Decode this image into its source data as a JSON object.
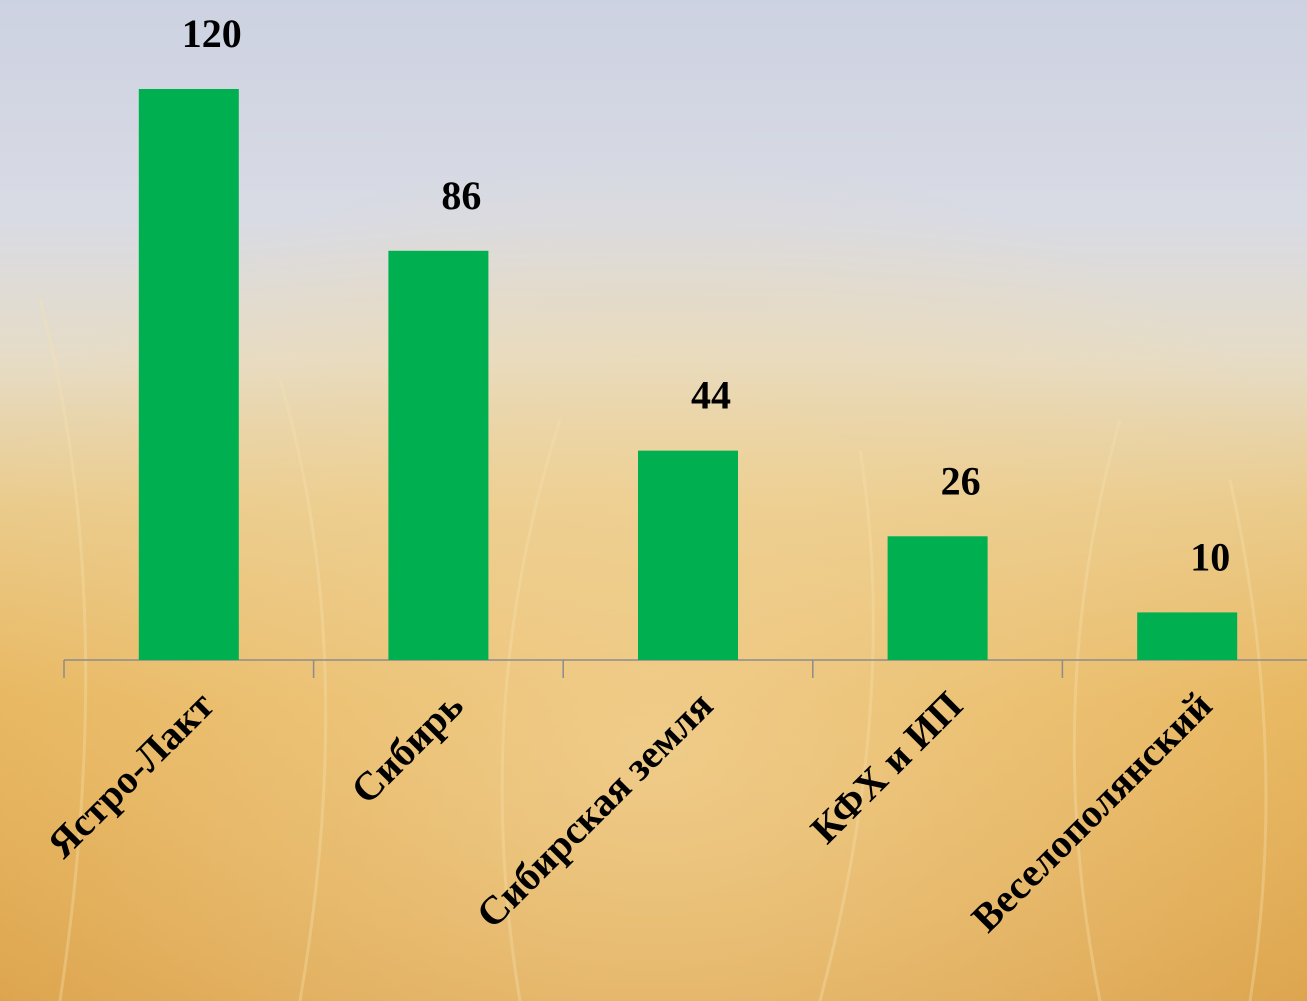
{
  "chart_data": {
    "type": "bar",
    "categories": [
      "Ястро-Лакт",
      "Сибирь",
      "Сибирская земля",
      "КФХ и ИП",
      "Веселополянский"
    ],
    "values": [
      120,
      86,
      44,
      26,
      10
    ],
    "color": "#00b050",
    "ylim": [
      0,
      120
    ]
  }
}
